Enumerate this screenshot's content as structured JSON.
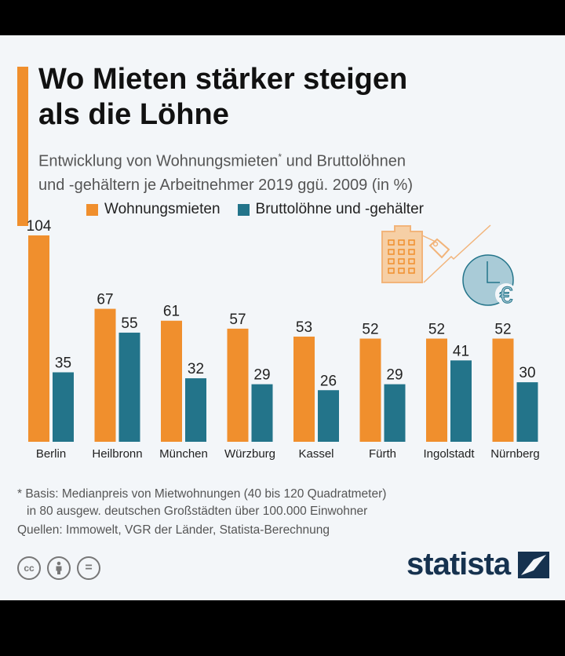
{
  "header": {
    "title_line1": "Wo Mieten stärker steigen",
    "title_line2": "als die Löhne",
    "subtitle_line1a": "Entwicklung von Wohnungsmieten",
    "subtitle_sup": "*",
    "subtitle_line1b": " und Bruttolöhnen",
    "subtitle_line2": "und -gehältern je Arbeitnehmer 2019 ggü. 2009 (in %)"
  },
  "colors": {
    "rent": "#f08f2d",
    "wages": "#23748a",
    "accent": "#f08f2d"
  },
  "chart_data": {
    "type": "bar",
    "title": "Wo Mieten stärker steigen als die Löhne",
    "xlabel": "",
    "ylabel": "",
    "ylim": [
      0,
      104
    ],
    "grid": false,
    "legend_position": "top",
    "categories": [
      "Berlin",
      "Heilbronn",
      "München",
      "Würzburg",
      "Kassel",
      "Fürth",
      "Ingolstadt",
      "Nürnberg"
    ],
    "series": [
      {
        "name": "Wohnungsmieten",
        "values": [
          104,
          67,
          61,
          57,
          53,
          52,
          52,
          52
        ]
      },
      {
        "name": "Bruttolöhne und -gehälter",
        "values": [
          35,
          55,
          32,
          29,
          26,
          29,
          41,
          30
        ]
      }
    ]
  },
  "footer": {
    "note_line1": "* Basis: Medianpreis von Mietwohnungen (40 bis 120 Quadratmeter)",
    "note_line2": "in 80 ausgew. deutschen Großstädten über 100.000 Einwohner",
    "sources": "Quellen: Immowelt, VGR der Länder, Statista-Berechnung",
    "license_icons": [
      "cc-icon",
      "by-icon",
      "nd-icon"
    ],
    "license_cc": "cc",
    "license_nd": "=",
    "brand": "statista"
  }
}
